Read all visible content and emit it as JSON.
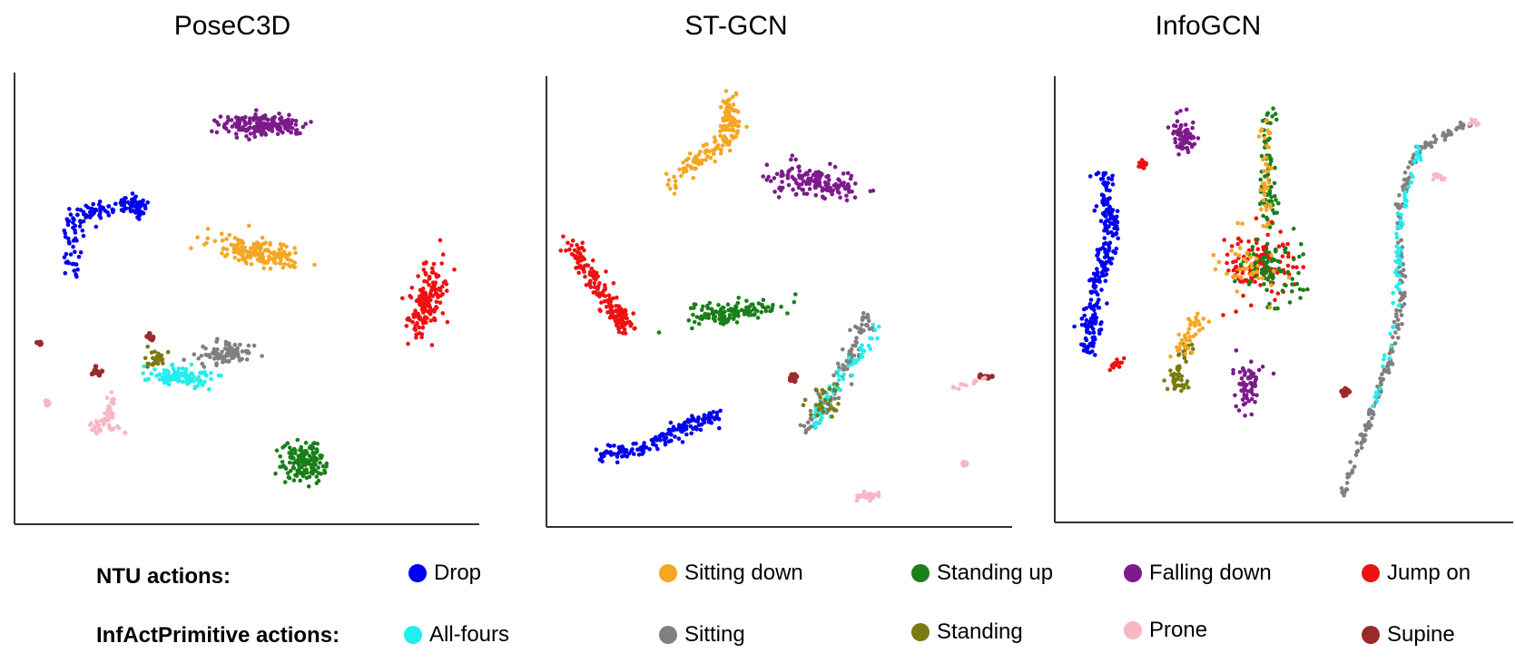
{
  "panels": [
    {
      "title": "PoseC3D"
    },
    {
      "title": "ST-GCN"
    },
    {
      "title": "InfoGCN"
    }
  ],
  "legend": {
    "ntu_heading": "NTU actions:",
    "inf_heading": "InfActPrimitive actions:",
    "ntu": [
      {
        "label": "Drop",
        "color": "#0000ee"
      },
      {
        "label": "Sitting down",
        "color": "#f5a623"
      },
      {
        "label": "Standing up",
        "color": "#1a7f1a"
      },
      {
        "label": "Falling down",
        "color": "#7d1a8c"
      },
      {
        "label": "Jump on",
        "color": "#ee1111"
      }
    ],
    "inf": [
      {
        "label": "All-fours",
        "color": "#22eeee"
      },
      {
        "label": "Sitting",
        "color": "#808080"
      },
      {
        "label": "Standing",
        "color": "#7a7a10"
      },
      {
        "label": "Prone",
        "color": "#f7b7c4"
      },
      {
        "label": "Supine",
        "color": "#9b2a2a"
      }
    ]
  },
  "chart_data": [
    {
      "type": "scatter",
      "title": "PoseC3D",
      "xlabel": "",
      "ylabel": "",
      "grid": false,
      "series": [
        {
          "name": "Drop"
        },
        {
          "name": "Sitting down"
        },
        {
          "name": "Standing up"
        },
        {
          "name": "Falling down"
        },
        {
          "name": "Jump on"
        },
        {
          "name": "All-fours"
        },
        {
          "name": "Sitting"
        },
        {
          "name": "Standing"
        },
        {
          "name": "Prone"
        },
        {
          "name": "Supine"
        }
      ]
    },
    {
      "type": "scatter",
      "title": "ST-GCN",
      "xlabel": "",
      "ylabel": "",
      "grid": false,
      "series": [
        {
          "name": "Drop"
        },
        {
          "name": "Sitting down"
        },
        {
          "name": "Standing up"
        },
        {
          "name": "Falling down"
        },
        {
          "name": "Jump on"
        },
        {
          "name": "All-fours"
        },
        {
          "name": "Sitting"
        },
        {
          "name": "Standing"
        },
        {
          "name": "Prone"
        },
        {
          "name": "Supine"
        }
      ]
    },
    {
      "type": "scatter",
      "title": "InfoGCN",
      "xlabel": "",
      "ylabel": "",
      "grid": false,
      "series": [
        {
          "name": "Drop"
        },
        {
          "name": "Sitting down"
        },
        {
          "name": "Standing up"
        },
        {
          "name": "Falling down"
        },
        {
          "name": "Jump on"
        },
        {
          "name": "All-fours"
        },
        {
          "name": "Sitting"
        },
        {
          "name": "Standing"
        },
        {
          "name": "Prone"
        },
        {
          "name": "Supine"
        }
      ]
    }
  ]
}
